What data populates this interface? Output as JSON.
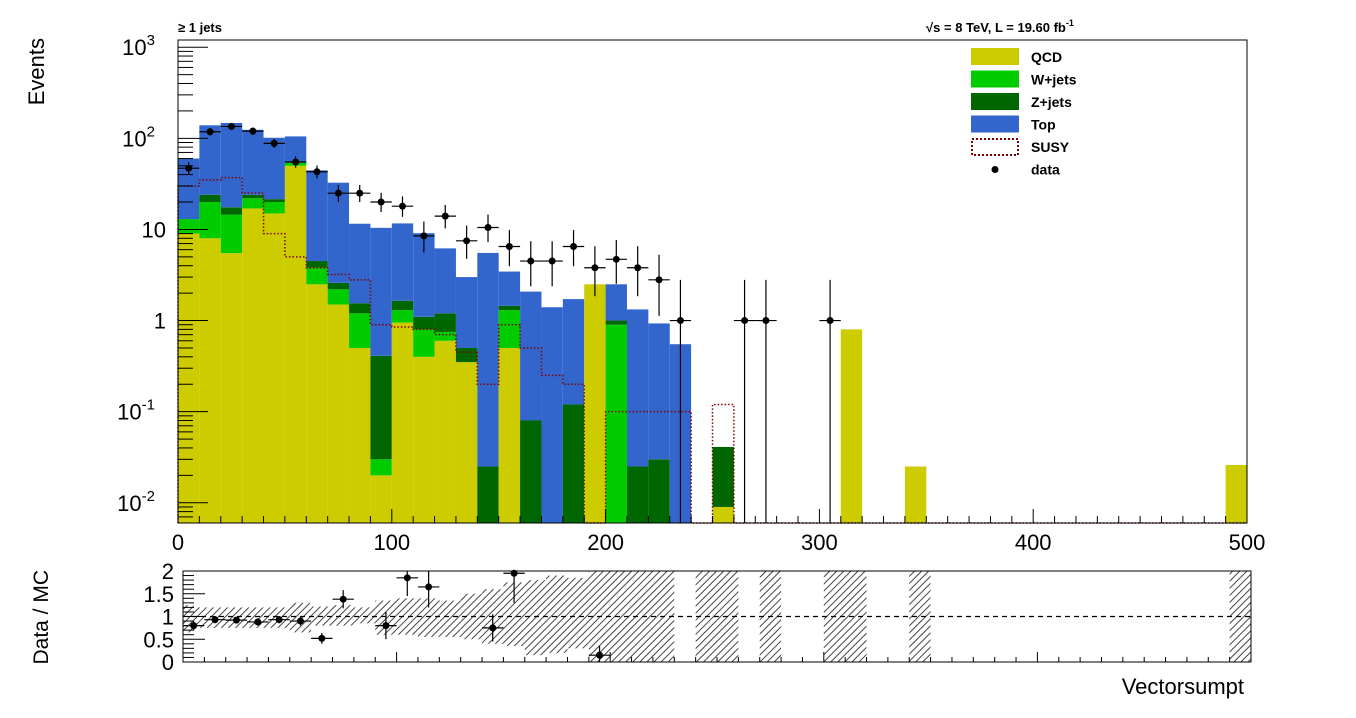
{
  "chart_data": [
    {
      "type": "bar",
      "panel": "main",
      "ylabel": "Events",
      "xlabel": "",
      "yscale": "log",
      "xlim": [
        0,
        500
      ],
      "ylim": [
        0.006,
        1200
      ],
      "bin_width": 10,
      "x_tick_labels": [
        "0",
        "100",
        "200",
        "300",
        "400",
        "500"
      ],
      "y_tick_labels": [
        {
          "value": 1000,
          "base": "10",
          "exp": "3"
        },
        {
          "value": 100,
          "base": "10",
          "exp": "2"
        },
        {
          "value": 10,
          "base": "10",
          "exp": ""
        },
        {
          "value": 1,
          "base": "1",
          "exp": ""
        },
        {
          "value": 0.1,
          "base": "10",
          "exp": "-1"
        },
        {
          "value": 0.01,
          "base": "10",
          "exp": "-2"
        }
      ],
      "annotation_left": "≥ 1 jets",
      "annotation_right": {
        "sqrt": "√s",
        "text": " = 8 TeV, L = 19.60 fb",
        "sup": "-1"
      },
      "legend_placement": "top-right",
      "legend": [
        {
          "label": "QCD",
          "kind": "fill",
          "color": "#cccc00"
        },
        {
          "label": "W+jets",
          "kind": "fill",
          "color": "#00cc00"
        },
        {
          "label": "Z+jets",
          "kind": "fill",
          "color": "#006600"
        },
        {
          "label": "Top",
          "kind": "fill",
          "color": "#3366cc"
        },
        {
          "label": "SUSY",
          "kind": "dotted",
          "color": "#800000"
        },
        {
          "label": "data",
          "kind": "marker",
          "color": "#000000"
        }
      ],
      "stack_series": [
        {
          "name": "QCD",
          "color": "#cccc00",
          "values": [
            9,
            8,
            5.5,
            17,
            15,
            50,
            2.5,
            1.5,
            0.5,
            0.02,
            0.95,
            0.4,
            0.6,
            0.35,
            0,
            0.5,
            0,
            0,
            0,
            2.5,
            0,
            0,
            0,
            0,
            0,
            0.009,
            0,
            0,
            0,
            0,
            0,
            0.8,
            0,
            0,
            0.025,
            0,
            0,
            0,
            0,
            0,
            0,
            0,
            0,
            0,
            0,
            0,
            0,
            0,
            0,
            0.026
          ]
        },
        {
          "name": "W+jets",
          "color": "#00cc00",
          "values": [
            4,
            12,
            9,
            5,
            5,
            4,
            1.3,
            0.7,
            0.7,
            0.01,
            0.35,
            0.4,
            0.15,
            0,
            0,
            0.8,
            0,
            0,
            0,
            0,
            0.9,
            0,
            0,
            0,
            0,
            0,
            0,
            0,
            0,
            0,
            0,
            0,
            0,
            0,
            0,
            0,
            0,
            0,
            0,
            0,
            0,
            0,
            0,
            0,
            0,
            0,
            0,
            0,
            0,
            0
          ]
        },
        {
          "name": "Z+jets",
          "color": "#006600",
          "values": [
            0,
            4,
            3,
            2,
            1.5,
            1,
            0.7,
            0.4,
            0.35,
            0.38,
            0.35,
            0.3,
            0.45,
            0.15,
            0.025,
            0.15,
            0.08,
            0,
            0.12,
            0,
            0.1,
            0.025,
            0.03,
            0,
            0,
            0.032,
            0,
            0,
            0,
            0,
            0,
            0,
            0,
            0,
            0,
            0,
            0,
            0,
            0,
            0,
            0,
            0,
            0,
            0,
            0,
            0,
            0,
            0,
            0,
            0
          ]
        },
        {
          "name": "Top",
          "color": "#3366cc",
          "values": [
            47,
            115,
            130,
            100,
            80,
            50,
            40,
            30,
            10,
            10,
            10,
            8,
            5,
            2.5,
            5.5,
            2,
            2,
            1.4,
            1.6,
            0,
            1.5,
            1.3,
            0.9,
            0.55,
            0,
            0,
            0,
            0,
            0,
            0,
            0,
            0,
            0,
            0,
            0,
            0,
            0,
            0,
            0,
            0,
            0,
            0,
            0,
            0,
            0,
            0,
            0,
            0,
            0,
            0
          ]
        }
      ],
      "susy": {
        "name": "SUSY",
        "color": "#800000",
        "values": [
          30,
          35,
          37,
          25,
          9,
          5,
          3.8,
          3.2,
          2.8,
          0.9,
          0.85,
          0.8,
          0.7,
          0.45,
          0.2,
          0.9,
          0.5,
          0.25,
          0.2,
          0,
          0.1,
          0.1,
          0.1,
          0.1,
          0,
          0.12,
          0,
          0,
          0,
          0,
          0,
          0,
          0,
          0,
          0,
          0,
          0,
          0,
          0,
          0,
          0,
          0,
          0,
          0,
          0,
          0,
          0,
          0,
          0,
          0
        ]
      },
      "data_points": {
        "name": "data",
        "color": "#000000",
        "x": [
          5,
          15,
          25,
          35,
          45,
          55,
          65,
          75,
          85,
          95,
          105,
          115,
          125,
          135,
          145,
          155,
          165,
          175,
          185,
          195,
          205,
          215,
          225,
          235,
          265,
          275,
          305
        ],
        "y": [
          47,
          118,
          135,
          120,
          88,
          55,
          43,
          25,
          25,
          20,
          18,
          8.5,
          14,
          7.5,
          10.5,
          6.5,
          4.5,
          4.5,
          6.5,
          3.8,
          4.7,
          3.8,
          2.8,
          1,
          1,
          1,
          1
        ]
      }
    },
    {
      "type": "scatter",
      "panel": "ratio",
      "ylabel": "Data / MC",
      "xlabel": "Vectorsumpt",
      "xlim": [
        0,
        500
      ],
      "ylim": [
        0,
        2
      ],
      "y_tick_labels": [
        "0",
        "0.5",
        "1",
        "1.5",
        "2"
      ],
      "reference_line": 1,
      "uncertainty_bands": [
        {
          "x0": 0,
          "x1": 5,
          "lo": 0.65,
          "hi": 1.25
        },
        {
          "x0": 5,
          "x1": 50,
          "lo": 0.75,
          "hi": 1.2
        },
        {
          "x0": 50,
          "x1": 60,
          "lo": 0.65,
          "hi": 1.3
        },
        {
          "x0": 60,
          "x1": 70,
          "lo": 0.8,
          "hi": 1.22
        },
        {
          "x0": 70,
          "x1": 80,
          "lo": 0.8,
          "hi": 1.25
        },
        {
          "x0": 80,
          "x1": 90,
          "lo": 0.85,
          "hi": 1.2
        },
        {
          "x0": 90,
          "x1": 100,
          "lo": 0.6,
          "hi": 1.35
        },
        {
          "x0": 100,
          "x1": 110,
          "lo": 0.6,
          "hi": 1.4
        },
        {
          "x0": 110,
          "x1": 120,
          "lo": 0.55,
          "hi": 1.4
        },
        {
          "x0": 120,
          "x1": 130,
          "lo": 0.55,
          "hi": 1.35
        },
        {
          "x0": 130,
          "x1": 140,
          "lo": 0.5,
          "hi": 1.5
        },
        {
          "x0": 140,
          "x1": 150,
          "lo": 0.4,
          "hi": 1.6
        },
        {
          "x0": 150,
          "x1": 160,
          "lo": 0.35,
          "hi": 1.75
        },
        {
          "x0": 160,
          "x1": 170,
          "lo": 0.15,
          "hi": 1.8
        },
        {
          "x0": 170,
          "x1": 180,
          "lo": 0.2,
          "hi": 1.9
        },
        {
          "x0": 180,
          "x1": 190,
          "lo": 0.3,
          "hi": 1.85
        },
        {
          "x0": 190,
          "x1": 230,
          "lo": 0,
          "hi": 2
        },
        {
          "x0": 240,
          "x1": 260,
          "lo": 0,
          "hi": 2
        },
        {
          "x0": 270,
          "x1": 280,
          "lo": 0,
          "hi": 2
        },
        {
          "x0": 300,
          "x1": 320,
          "lo": 0,
          "hi": 2
        },
        {
          "x0": 340,
          "x1": 350,
          "lo": 0,
          "hi": 2
        },
        {
          "x0": 490,
          "x1": 500,
          "lo": 0,
          "hi": 2
        }
      ],
      "x": [
        5,
        15,
        25,
        35,
        45,
        55,
        65,
        75,
        95,
        105,
        115,
        145,
        155,
        195
      ],
      "y": [
        0.8,
        0.93,
        0.92,
        0.88,
        0.93,
        0.9,
        0.52,
        1.38,
        0.8,
        1.85,
        1.65,
        0.75,
        1.95,
        0.15
      ],
      "yerr": [
        0.1,
        0.08,
        0.07,
        0.08,
        0.08,
        0.1,
        0.12,
        0.2,
        0.3,
        0.4,
        0.45,
        0.3,
        0.65,
        0.2
      ]
    }
  ]
}
